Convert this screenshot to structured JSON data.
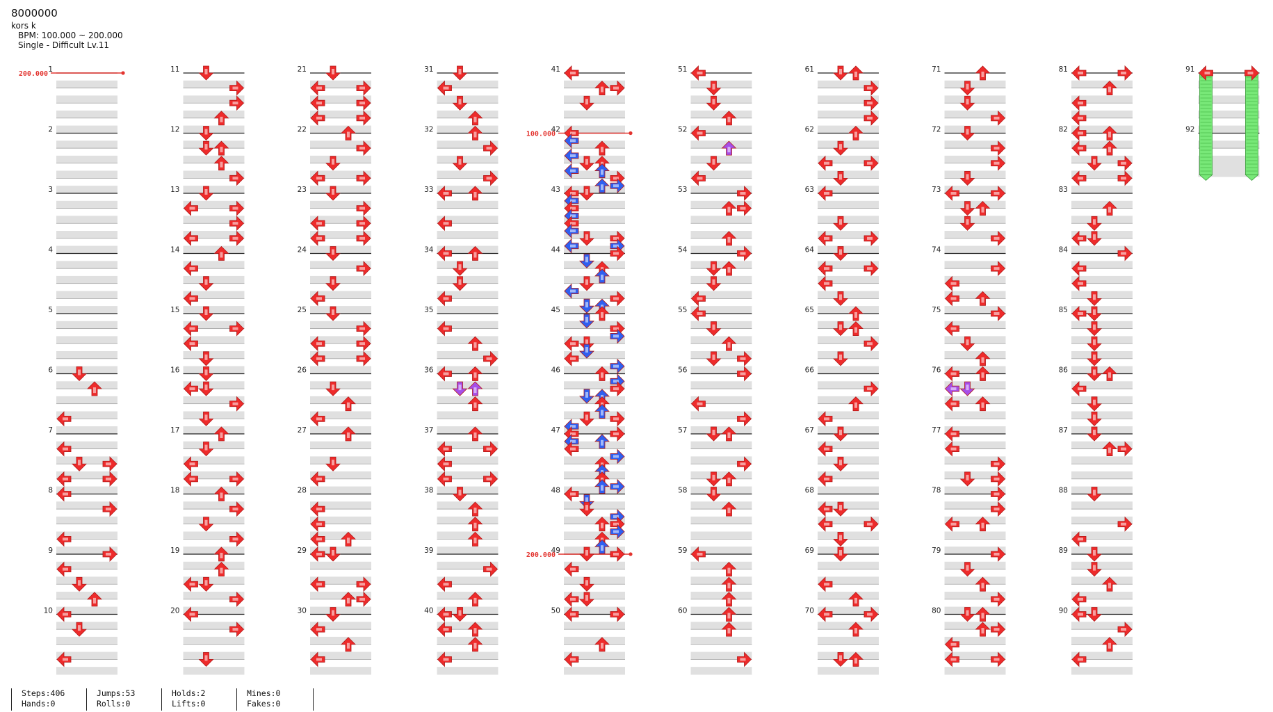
{
  "song": {
    "title": "8000000",
    "artist": "kors k",
    "bpm_text": "BPM: 100.000 ~ 200.000",
    "difficulty_text": "Single - Difficult Lv.11"
  },
  "chart": {
    "measures": 92,
    "measures_per_column": 10,
    "lane_count": 4,
    "bpm_changes": [
      {
        "measure": 1,
        "value": "200.000"
      },
      {
        "measure": 42,
        "value": "100.000"
      },
      {
        "measure": 49,
        "value": "200.000"
      }
    ],
    "note_colors": {
      "quarter": "#ee2b2b",
      "eighth": "#2f5ff0",
      "sixteenth": "#a64ee8",
      "hold": "#78e878"
    },
    "holds": [
      {
        "measure": 91,
        "lanes": [
          0,
          3
        ],
        "end_measure": 92
      }
    ],
    "note_rows": [
      [
        [
          11,
          0,
          "d"
        ],
        [
          11,
          1,
          "r"
        ],
        [
          11,
          2,
          "r"
        ],
        [
          21,
          0,
          "d"
        ],
        [
          21,
          1,
          "lr"
        ],
        [
          21,
          2,
          "lr"
        ],
        [
          21,
          3,
          "lr"
        ]
      ],
      [
        [
          12,
          0,
          "d"
        ],
        [
          12,
          1,
          "du"
        ],
        [
          12,
          2,
          "u"
        ],
        [
          12,
          3,
          "r"
        ],
        [
          22,
          0,
          "u"
        ],
        [
          22,
          1,
          "r"
        ],
        [
          22,
          2,
          "d"
        ],
        [
          22,
          3,
          "lr"
        ]
      ],
      [
        [
          13,
          0,
          "d"
        ],
        [
          13,
          1,
          "lr"
        ],
        [
          13,
          2,
          "r"
        ],
        [
          13,
          3,
          "lr"
        ],
        [
          23,
          0,
          "d"
        ],
        [
          23,
          1,
          "r"
        ],
        [
          23,
          2,
          "lr"
        ],
        [
          23,
          3,
          "lr"
        ]
      ],
      [
        [
          14,
          0,
          "u"
        ],
        [
          14,
          1,
          "l"
        ],
        [
          14,
          2,
          "d"
        ],
        [
          14,
          3,
          "l"
        ],
        [
          24,
          0,
          "d"
        ],
        [
          24,
          1,
          "r"
        ],
        [
          24,
          2,
          "d"
        ],
        [
          24,
          3,
          "l"
        ]
      ],
      [
        [
          15,
          0,
          "d"
        ],
        [
          15,
          1,
          "lr"
        ],
        [
          15,
          2,
          "l"
        ],
        [
          15,
          3,
          "d"
        ],
        [
          25,
          0,
          "d"
        ],
        [
          25,
          1,
          "r"
        ],
        [
          25,
          2,
          "lr"
        ],
        [
          25,
          3,
          "lr"
        ]
      ]
    ]
  },
  "stats": {
    "steps": "Steps:406",
    "hands": "Hands:0",
    "jumps": "Jumps:53",
    "rolls": "Rolls:0",
    "holds": "Holds:2",
    "lifts": "Lifts:0",
    "mines": "Mines:0",
    "fakes": "Fakes:0"
  }
}
